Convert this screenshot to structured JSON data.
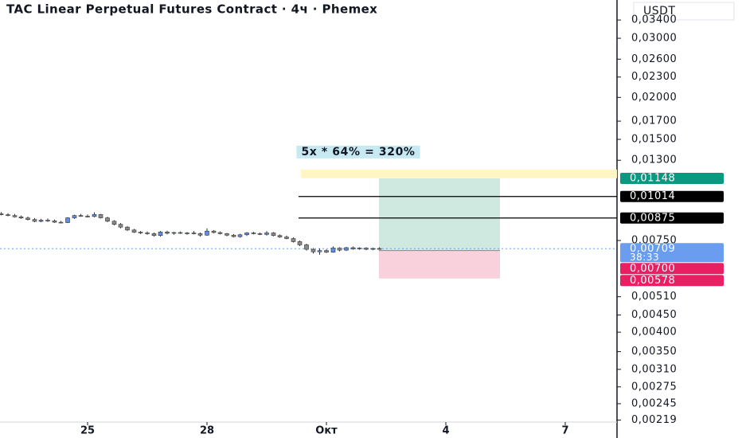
{
  "chart_data": {
    "type": "candlestick",
    "title": "TAC Linear Perpetual Futures Contract · 4ч · Phemex",
    "y_axis_label": "USDT",
    "annotation": "5x * 64% = 320%",
    "log_scale": true,
    "up_color": "#5b8fe8",
    "down_color": "#8a8a8a",
    "x": [
      22.83,
      23.0,
      23.17,
      23.33,
      23.5,
      23.67,
      23.83,
      24.0,
      24.17,
      24.33,
      24.5,
      24.67,
      24.83,
      25.0,
      25.17,
      25.33,
      25.5,
      25.67,
      25.83,
      26.0,
      26.17,
      26.33,
      26.5,
      26.67,
      26.83,
      27.0,
      27.17,
      27.33,
      27.5,
      27.67,
      27.83,
      28.0,
      28.17,
      28.33,
      28.5,
      28.67,
      28.83,
      29.0,
      29.17,
      29.33,
      29.5,
      29.67,
      29.83,
      30.0,
      30.17,
      30.33,
      30.5,
      30.67,
      30.83,
      31.0,
      31.17,
      31.33,
      31.5,
      31.67,
      31.83,
      32.0,
      32.17,
      32.33
    ],
    "open": [
      0.00901,
      0.00895,
      0.0089,
      0.00882,
      0.00875,
      0.00866,
      0.00855,
      0.00862,
      0.00858,
      0.0085,
      0.00848,
      0.00876,
      0.0089,
      0.00886,
      0.00884,
      0.00896,
      0.00876,
      0.00856,
      0.00838,
      0.00822,
      0.00806,
      0.00794,
      0.0079,
      0.00786,
      0.00776,
      0.00795,
      0.00788,
      0.00792,
      0.00788,
      0.0079,
      0.00786,
      0.00778,
      0.008,
      0.00792,
      0.00786,
      0.00778,
      0.0077,
      0.0078,
      0.0079,
      0.00786,
      0.00782,
      0.0079,
      0.00776,
      0.00768,
      0.0076,
      0.00744,
      0.00728,
      0.00706,
      0.00694,
      0.007,
      0.00692,
      0.00712,
      0.00702,
      0.00714,
      0.00708,
      0.00712,
      0.00706,
      0.0071
    ],
    "high": [
      0.00911,
      0.00905,
      0.009,
      0.0089,
      0.00884,
      0.00875,
      0.0087,
      0.00872,
      0.00866,
      0.00858,
      0.0088,
      0.00895,
      0.009,
      0.00896,
      0.0091,
      0.009,
      0.00882,
      0.00862,
      0.00845,
      0.00828,
      0.00812,
      0.008,
      0.00798,
      0.00792,
      0.008,
      0.00802,
      0.00796,
      0.00798,
      0.00795,
      0.008,
      0.00792,
      0.00815,
      0.00805,
      0.00798,
      0.0079,
      0.00784,
      0.00785,
      0.00794,
      0.00796,
      0.00792,
      0.008,
      0.00794,
      0.00782,
      0.00776,
      0.00766,
      0.0075,
      0.00734,
      0.00712,
      0.0071,
      0.00706,
      0.0072,
      0.00716,
      0.00718,
      0.0072,
      0.00716,
      0.00716,
      0.00714,
      0.00716
    ],
    "low": [
      0.00891,
      0.00885,
      0.00878,
      0.0087,
      0.0086,
      0.0085,
      0.0085,
      0.00852,
      0.00846,
      0.00845,
      0.00845,
      0.0087,
      0.00882,
      0.00878,
      0.0088,
      0.00872,
      0.0085,
      0.00832,
      0.00815,
      0.008,
      0.0079,
      0.00784,
      0.0078,
      0.0077,
      0.0077,
      0.00782,
      0.0078,
      0.00785,
      0.0078,
      0.00782,
      0.0077,
      0.00775,
      0.00788,
      0.00782,
      0.00772,
      0.00766,
      0.00765,
      0.00774,
      0.00782,
      0.00778,
      0.00776,
      0.00772,
      0.00764,
      0.00756,
      0.0074,
      0.00722,
      0.007,
      0.00686,
      0.0068,
      0.00688,
      0.0069,
      0.00696,
      0.00698,
      0.00704,
      0.00704,
      0.00702,
      0.00702,
      0.00704
    ],
    "close": [
      0.00895,
      0.0089,
      0.00882,
      0.00875,
      0.00866,
      0.00855,
      0.00862,
      0.00858,
      0.0085,
      0.00848,
      0.00876,
      0.0089,
      0.00886,
      0.00884,
      0.00896,
      0.00876,
      0.00856,
      0.00838,
      0.00822,
      0.00806,
      0.00794,
      0.0079,
      0.00786,
      0.00776,
      0.00795,
      0.00788,
      0.00792,
      0.00788,
      0.0079,
      0.00786,
      0.00778,
      0.008,
      0.00792,
      0.00786,
      0.00778,
      0.0077,
      0.0078,
      0.0079,
      0.00786,
      0.00782,
      0.0079,
      0.00776,
      0.00768,
      0.0076,
      0.00744,
      0.00728,
      0.00706,
      0.00694,
      0.007,
      0.00692,
      0.00712,
      0.00702,
      0.00714,
      0.00708,
      0.00712,
      0.00706,
      0.0071,
      0.00709
    ],
    "xlim": [
      22.8,
      38.3
    ],
    "xticks": [
      25,
      28,
      {
        "value": 31,
        "label": "Окт"
      },
      {
        "value": 34,
        "label": "4"
      },
      {
        "value": 37,
        "label": "7"
      }
    ],
    "ylim": [
      0.00216,
      0.039
    ],
    "yticks": [
      {
        "value": 0.034,
        "label": "0,03400"
      },
      {
        "value": 0.03,
        "label": "0,03000"
      },
      {
        "value": 0.026,
        "label": "0,02600"
      },
      {
        "value": 0.023,
        "label": "0,02300"
      },
      {
        "value": 0.02,
        "label": "0,02000"
      },
      {
        "value": 0.017,
        "label": "0,01700"
      },
      {
        "value": 0.015,
        "label": "0,01500"
      },
      {
        "value": 0.013,
        "label": "0,01300"
      },
      {
        "value": 0.0075,
        "label": "0,00750"
      },
      {
        "value": 0.0051,
        "label": "0,00510"
      },
      {
        "value": 0.0045,
        "label": "0,00450"
      },
      {
        "value": 0.004,
        "label": "0,00400"
      },
      {
        "value": 0.0035,
        "label": "0,00350"
      },
      {
        "value": 0.0031,
        "label": "0,00310"
      },
      {
        "value": 0.00275,
        "label": "0,00275"
      },
      {
        "value": 0.00245,
        "label": "0,00245"
      },
      {
        "value": 0.00219,
        "label": "0,00219"
      }
    ],
    "price_labels": [
      {
        "value": 0.01148,
        "label": "0,01148",
        "color": "#089981"
      },
      {
        "value": 0.01014,
        "label": "0,01014",
        "color": "#000000"
      },
      {
        "value": 0.00875,
        "label": "0,00875",
        "color": "#000000"
      },
      {
        "value": 0.00709,
        "label": "0,00709",
        "color": "#6a9cf0",
        "countdown": "38:33"
      },
      {
        "value": 0.007,
        "label": "0,00700",
        "color": "#e91e63"
      },
      {
        "value": 0.00578,
        "label": "0,00578",
        "color": "#e91e63"
      }
    ],
    "levels": [
      0.01014,
      0.00875
    ],
    "level_start": 30.3,
    "current_price": 0.00709,
    "band": {
      "low": 0.0115,
      "high": 0.0122,
      "start": 30.36,
      "color": "#fff6c4"
    },
    "position": {
      "entry": 0.007,
      "target": 0.01148,
      "stop": 0.00578,
      "start": 32.32,
      "end": 35.36,
      "profit_color": "#cfe9e1",
      "loss_color": "#f9d1dd"
    }
  }
}
